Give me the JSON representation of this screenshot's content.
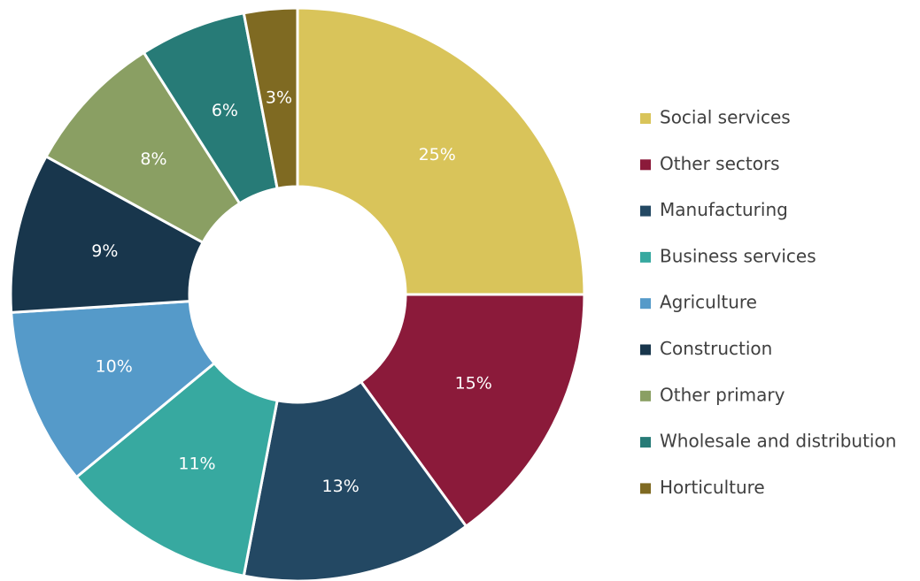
{
  "chart_data": {
    "type": "donut",
    "categories": [
      "Social services",
      "Other sectors",
      "Manufacturing",
      "Business services",
      "Agriculture",
      "Construction",
      "Other primary",
      "Wholesale and distribution",
      "Horticulture"
    ],
    "values": [
      25,
      15,
      13,
      11,
      10,
      9,
      8,
      6,
      3
    ],
    "value_labels": [
      "25%",
      "15%",
      "13%",
      "11%",
      "10%",
      "9%",
      "8%",
      "6%",
      "3%"
    ],
    "colors": [
      "#d9c45a",
      "#8b1a3a",
      "#234863",
      "#37a9a0",
      "#559ac9",
      "#18364c",
      "#8a9f63",
      "#277b77",
      "#7f6a22"
    ],
    "legend": "right"
  }
}
